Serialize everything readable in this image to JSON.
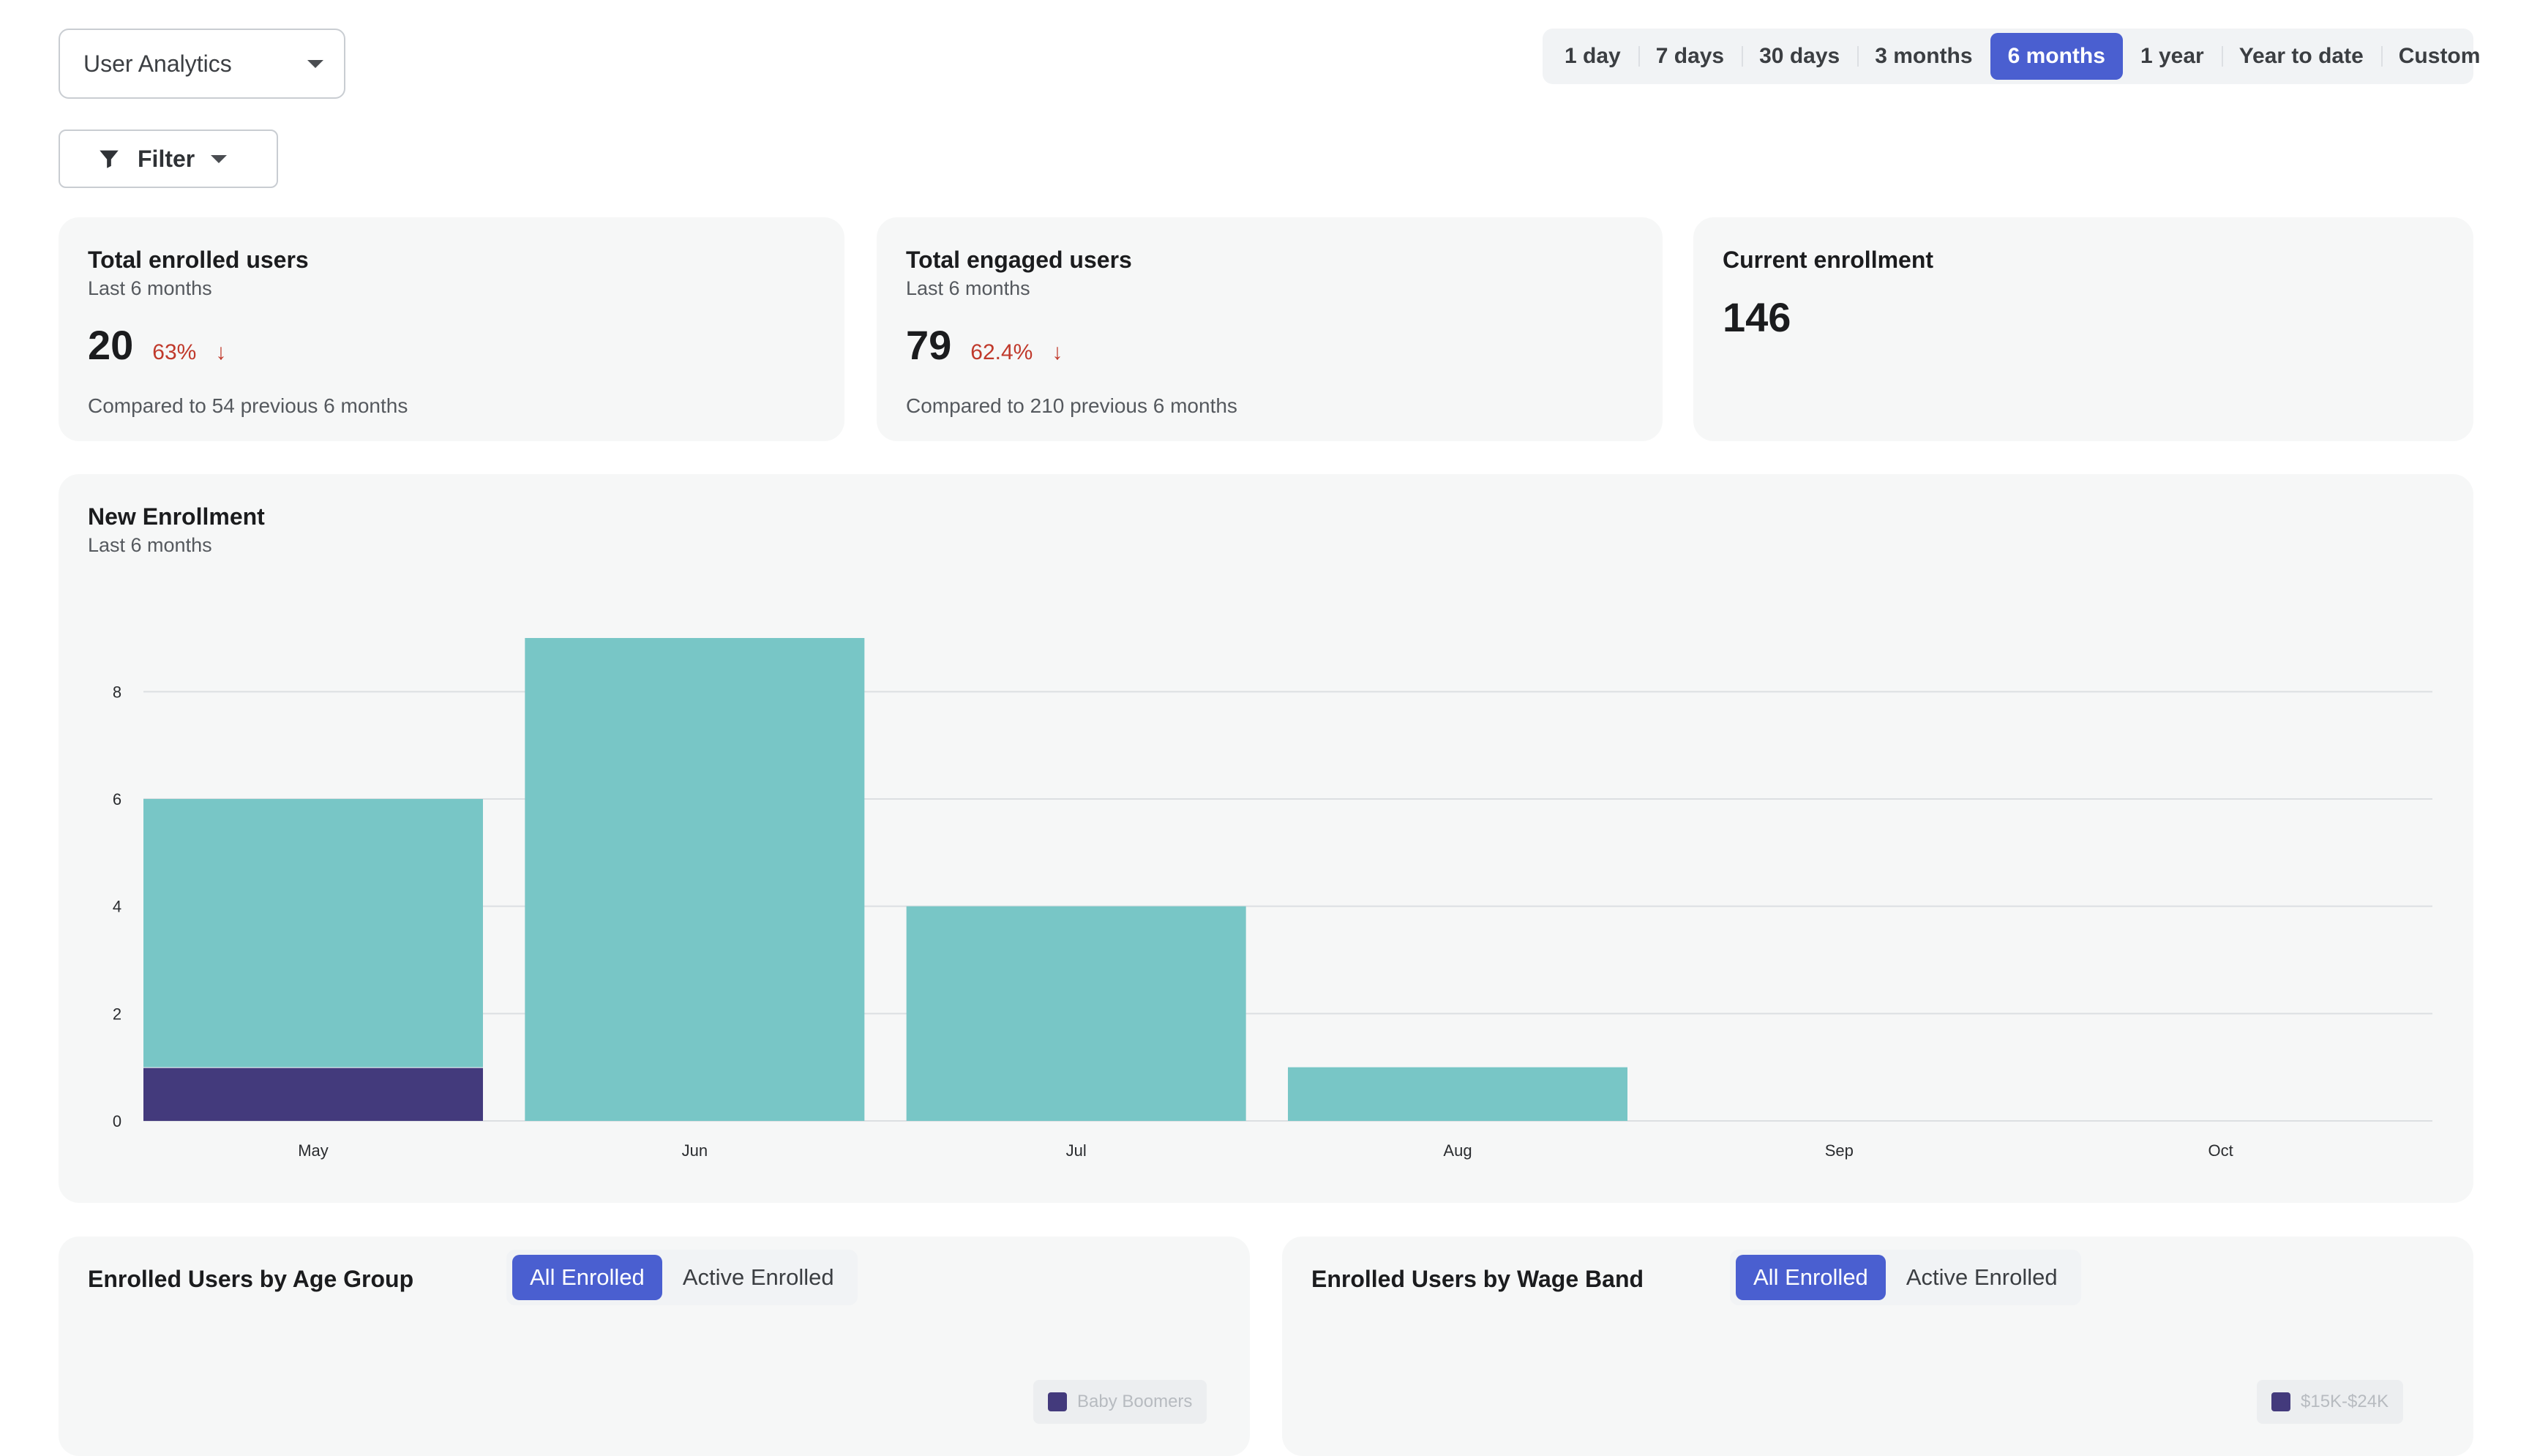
{
  "analytics_select": {
    "label": "User Analytics"
  },
  "filter": {
    "label": "Filter"
  },
  "range_tabs": [
    {
      "label": "1 day",
      "active": false
    },
    {
      "label": "7 days",
      "active": false
    },
    {
      "label": "30 days",
      "active": false
    },
    {
      "label": "3 months",
      "active": false
    },
    {
      "label": "6 months",
      "active": true
    },
    {
      "label": "1 year",
      "active": false
    },
    {
      "label": "Year to date",
      "active": false
    },
    {
      "label": "Custom",
      "active": false
    }
  ],
  "cards": {
    "enrolled": {
      "title": "Total enrolled users",
      "subtitle": "Last 6 months",
      "value": "20",
      "delta": "63%",
      "compare": "Compared to 54 previous 6 months"
    },
    "engaged": {
      "title": "Total engaged users",
      "subtitle": "Last 6 months",
      "value": "79",
      "delta": "62.4%",
      "compare": "Compared to 210 previous 6 months"
    },
    "current": {
      "title": "Current enrollment",
      "value": "146"
    }
  },
  "new_enrollment": {
    "title": "New Enrollment",
    "subtitle": "Last 6 months"
  },
  "chart_data": {
    "type": "bar",
    "stacked": true,
    "categories": [
      "May",
      "Jun",
      "Jul",
      "Aug",
      "Sep",
      "Oct"
    ],
    "series": [
      {
        "values": [
          1,
          0,
          0,
          0,
          0,
          0
        ],
        "color": "#433a7c"
      },
      {
        "values": [
          5,
          9,
          4,
          1,
          0,
          0
        ],
        "color": "#78c6c6"
      }
    ],
    "ylim": [
      0,
      9
    ],
    "yticks": [
      0,
      2,
      4,
      6,
      8
    ],
    "grid": true
  },
  "age_group": {
    "title": "Enrolled Users by Age Group",
    "toggle": [
      "All Enrolled",
      "Active Enrolled"
    ],
    "legend_first": "Baby Boomers"
  },
  "wage_band": {
    "title": "Enrolled Users by Wage Band",
    "toggle": [
      "All Enrolled",
      "Active Enrolled"
    ],
    "legend_first": "$15K-$24K"
  }
}
